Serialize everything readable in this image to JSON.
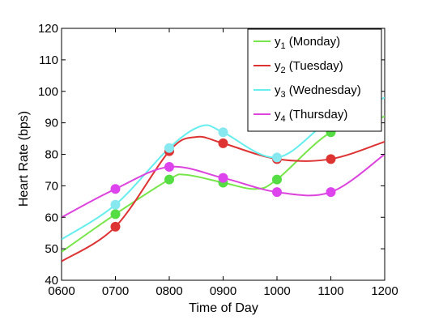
{
  "chart_data": {
    "type": "line",
    "xlabel": "Time of Day",
    "ylabel": "Heart Rate (bps)",
    "xlim": [
      600,
      1200
    ],
    "ylim": [
      40,
      120
    ],
    "x_tick_labels": [
      "0600",
      "0700",
      "0800",
      "0900",
      "1000",
      "1100",
      "1200"
    ],
    "y_tick_labels": [
      "40",
      "50",
      "60",
      "70",
      "80",
      "90",
      "100",
      "110",
      "120"
    ],
    "legend_position": "top-right",
    "grid": false,
    "x": [
      700,
      800,
      900,
      1000,
      1100
    ],
    "series": [
      {
        "name": "y",
        "sub": "1",
        "suffix": " (Monday)",
        "color": "#77e64a",
        "marker": "#55dd44",
        "values": [
          61,
          72,
          71,
          72,
          87
        ],
        "curve": [
          [
            600,
            49
          ],
          [
            700,
            61
          ],
          [
            800,
            72
          ],
          [
            830,
            73.5
          ],
          [
            900,
            71
          ],
          [
            960,
            69
          ],
          [
            1000,
            72
          ],
          [
            1100,
            87
          ],
          [
            1200,
            92
          ]
        ]
      },
      {
        "name": "y",
        "sub": "2",
        "suffix": " (Tuesday)",
        "color": "#dd3333",
        "marker": "#dd3333",
        "values": [
          57,
          81,
          83.5,
          78.5,
          78.5
        ],
        "curve": [
          [
            600,
            46
          ],
          [
            700,
            57
          ],
          [
            800,
            81
          ],
          [
            850,
            85.5
          ],
          [
            900,
            83.5
          ],
          [
            1000,
            78.5
          ],
          [
            1100,
            78.5
          ],
          [
            1200,
            84
          ]
        ]
      },
      {
        "name": "y",
        "sub": "3",
        "suffix": " (Wednesday)",
        "color": "#66eeee",
        "marker": "#88e8f0",
        "values": [
          64,
          82,
          87,
          79,
          91
        ],
        "curve": [
          [
            600,
            53
          ],
          [
            700,
            64
          ],
          [
            800,
            82
          ],
          [
            860,
            89
          ],
          [
            900,
            87
          ],
          [
            1000,
            79
          ],
          [
            1100,
            91
          ],
          [
            1200,
            98
          ]
        ]
      },
      {
        "name": "y",
        "sub": "4",
        "suffix": " (Thursday)",
        "color": "#dd44dd",
        "marker": "#dd44ee",
        "values": [
          69,
          76,
          72.5,
          68,
          68
        ],
        "curve": [
          [
            600,
            60
          ],
          [
            700,
            69
          ],
          [
            800,
            76
          ],
          [
            900,
            72.5
          ],
          [
            1000,
            68
          ],
          [
            1100,
            68
          ],
          [
            1200,
            80
          ]
        ]
      }
    ]
  }
}
